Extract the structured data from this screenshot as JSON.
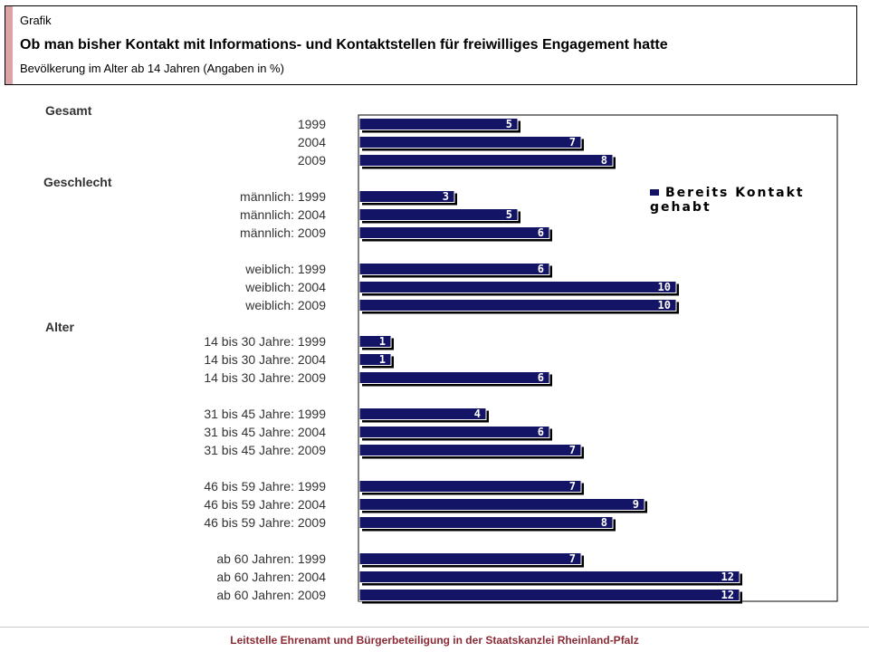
{
  "header": {
    "kicker": "Grafik",
    "title": "Ob man bisher Kontakt mit Informations- und Kontaktstellen für freiwilliges Engagement hatte",
    "subtitle": "Bevölkerung im Alter ab 14 Jahren (Angaben in %)"
  },
  "footer": "Leitstelle Ehrenamt und Bürgerbeteiligung in der Staatskanzlei Rheinland-Pfalz",
  "colors": {
    "bar": "#141466",
    "accent": "#d9a3a8",
    "footer_text": "#8a2a35"
  },
  "chart_data": {
    "type": "bar",
    "orientation": "horizontal",
    "xlim": [
      0,
      15
    ],
    "grid": false,
    "legend_position": "top-right",
    "series": [
      {
        "name": "Bereits Kontakt gehabt"
      }
    ],
    "sections": [
      {
        "title": "Gesamt",
        "groups": [
          [
            {
              "label": "1999",
              "value": 5
            },
            {
              "label": "2004",
              "value": 7
            },
            {
              "label": "2009",
              "value": 8
            }
          ]
        ]
      },
      {
        "title": "Geschlecht",
        "groups": [
          [
            {
              "label": "männlich: 1999",
              "value": 3
            },
            {
              "label": "männlich: 2004",
              "value": 5
            },
            {
              "label": "männlich: 2009",
              "value": 6
            }
          ],
          [
            {
              "label": "weiblich: 1999",
              "value": 6
            },
            {
              "label": "weiblich: 2004",
              "value": 10
            },
            {
              "label": "weiblich: 2009",
              "value": 10
            }
          ]
        ]
      },
      {
        "title": "Alter",
        "groups": [
          [
            {
              "label": "14 bis 30 Jahre: 1999",
              "value": 1
            },
            {
              "label": "14 bis 30 Jahre: 2004",
              "value": 1
            },
            {
              "label": "14 bis 30 Jahre: 2009",
              "value": 6
            }
          ],
          [
            {
              "label": "31 bis 45 Jahre: 1999",
              "value": 4
            },
            {
              "label": "31 bis 45 Jahre: 2004",
              "value": 6
            },
            {
              "label": "31 bis 45 Jahre: 2009",
              "value": 7
            }
          ],
          [
            {
              "label": "46 bis 59 Jahre: 1999",
              "value": 7
            },
            {
              "label": "46 bis 59 Jahre: 2004",
              "value": 9
            },
            {
              "label": "46 bis 59 Jahre: 2009",
              "value": 8
            }
          ],
          [
            {
              "label": "ab 60 Jahren: 1999",
              "value": 7
            },
            {
              "label": "ab 60 Jahren: 2004",
              "value": 12
            },
            {
              "label": "ab 60 Jahren: 2009",
              "value": 12
            }
          ]
        ]
      }
    ]
  }
}
